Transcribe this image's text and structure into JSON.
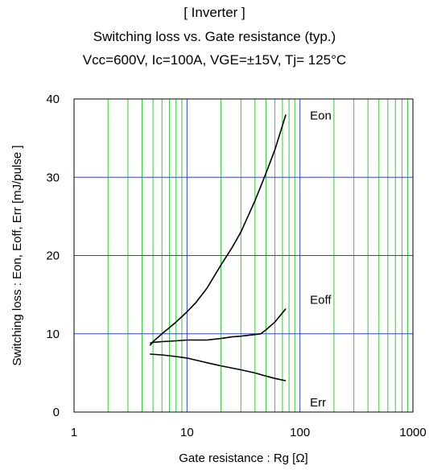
{
  "header": {
    "section": "[ Inverter ]",
    "title": "Switching loss  vs.  Gate resistance (typ.)",
    "conditions": "Vcc=600V, Ic=100A, VGE=±15V, Tj= 125°C"
  },
  "chart_data": {
    "type": "line",
    "title": "Switching loss  vs.  Gate resistance (typ.)",
    "xlabel": "Gate resistance : Rg [Ω]",
    "ylabel": "Switching loss  : Eon, Eoff, Err  [mJ/pulse ]",
    "xscale": "log",
    "xlim": [
      1,
      1000
    ],
    "ylim": [
      0,
      40
    ],
    "xticks": [
      1,
      10,
      100,
      1000
    ],
    "xtick_labels": [
      "1",
      "10",
      "100",
      "1000"
    ],
    "yticks": [
      0,
      10,
      20,
      30,
      40
    ],
    "ytick_labels": [
      "0",
      "10",
      "20",
      "30",
      "40"
    ],
    "grid": true,
    "grid_colors": {
      "major": "#3344cc",
      "minor": "#33cc33"
    },
    "series": [
      {
        "name": "Eon",
        "color": "#000000",
        "x": [
          4.7,
          5,
          6,
          7,
          8,
          10,
          12,
          15,
          20,
          25,
          30,
          40,
          50,
          60,
          75
        ],
        "y": [
          8.5,
          9.0,
          10.0,
          10.8,
          11.5,
          12.8,
          14.0,
          15.8,
          18.8,
          21.0,
          23.0,
          27.0,
          30.5,
          33.5,
          38.0
        ]
      },
      {
        "name": "Eoff",
        "color": "#000000",
        "x": [
          4.7,
          5,
          6,
          8,
          10,
          15,
          20,
          25,
          30,
          40,
          45,
          50,
          60,
          75
        ],
        "y": [
          8.8,
          8.9,
          9.0,
          9.1,
          9.2,
          9.2,
          9.4,
          9.6,
          9.7,
          9.9,
          10.0,
          10.5,
          11.5,
          13.2
        ]
      },
      {
        "name": "Err",
        "color": "#000000",
        "x": [
          4.7,
          6,
          8,
          10,
          15,
          20,
          30,
          40,
          50,
          60,
          75
        ],
        "y": [
          7.4,
          7.3,
          7.1,
          6.9,
          6.3,
          5.9,
          5.4,
          5.0,
          4.6,
          4.3,
          4.0
        ]
      }
    ]
  }
}
